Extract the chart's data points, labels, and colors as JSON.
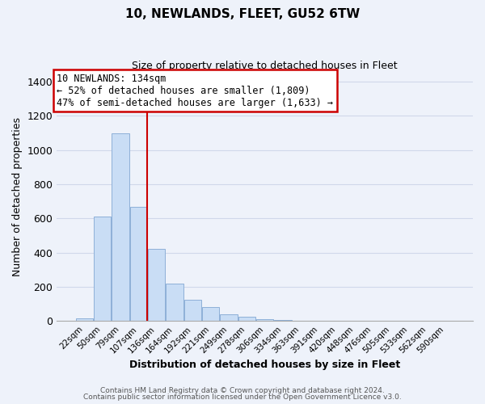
{
  "title": "10, NEWLANDS, FLEET, GU52 6TW",
  "subtitle": "Size of property relative to detached houses in Fleet",
  "xlabel": "Distribution of detached houses by size in Fleet",
  "ylabel": "Number of detached properties",
  "bar_labels": [
    "22sqm",
    "50sqm",
    "79sqm",
    "107sqm",
    "136sqm",
    "164sqm",
    "192sqm",
    "221sqm",
    "249sqm",
    "278sqm",
    "306sqm",
    "334sqm",
    "363sqm",
    "391sqm",
    "420sqm",
    "448sqm",
    "476sqm",
    "505sqm",
    "533sqm",
    "562sqm",
    "590sqm"
  ],
  "bar_values": [
    15,
    610,
    1100,
    670,
    420,
    220,
    125,
    80,
    40,
    25,
    10,
    5,
    0,
    0,
    0,
    0,
    0,
    0,
    0,
    0,
    0
  ],
  "bar_color": "#c9ddf5",
  "bar_edge_color": "#8eb0d8",
  "vline_x_index": 3,
  "vline_color": "#cc0000",
  "annotation_text": "10 NEWLANDS: 134sqm\n← 52% of detached houses are smaller (1,809)\n47% of semi-detached houses are larger (1,633) →",
  "annotation_box_color": "#ffffff",
  "annotation_box_edge": "#cc0000",
  "ylim": [
    0,
    1450
  ],
  "yticks": [
    0,
    200,
    400,
    600,
    800,
    1000,
    1200,
    1400
  ],
  "footer1": "Contains HM Land Registry data © Crown copyright and database right 2024.",
  "footer2": "Contains public sector information licensed under the Open Government Licence v3.0.",
  "background_color": "#eef2fa",
  "plot_bg_color": "#eef2fa",
  "grid_color": "#d0d8ea"
}
